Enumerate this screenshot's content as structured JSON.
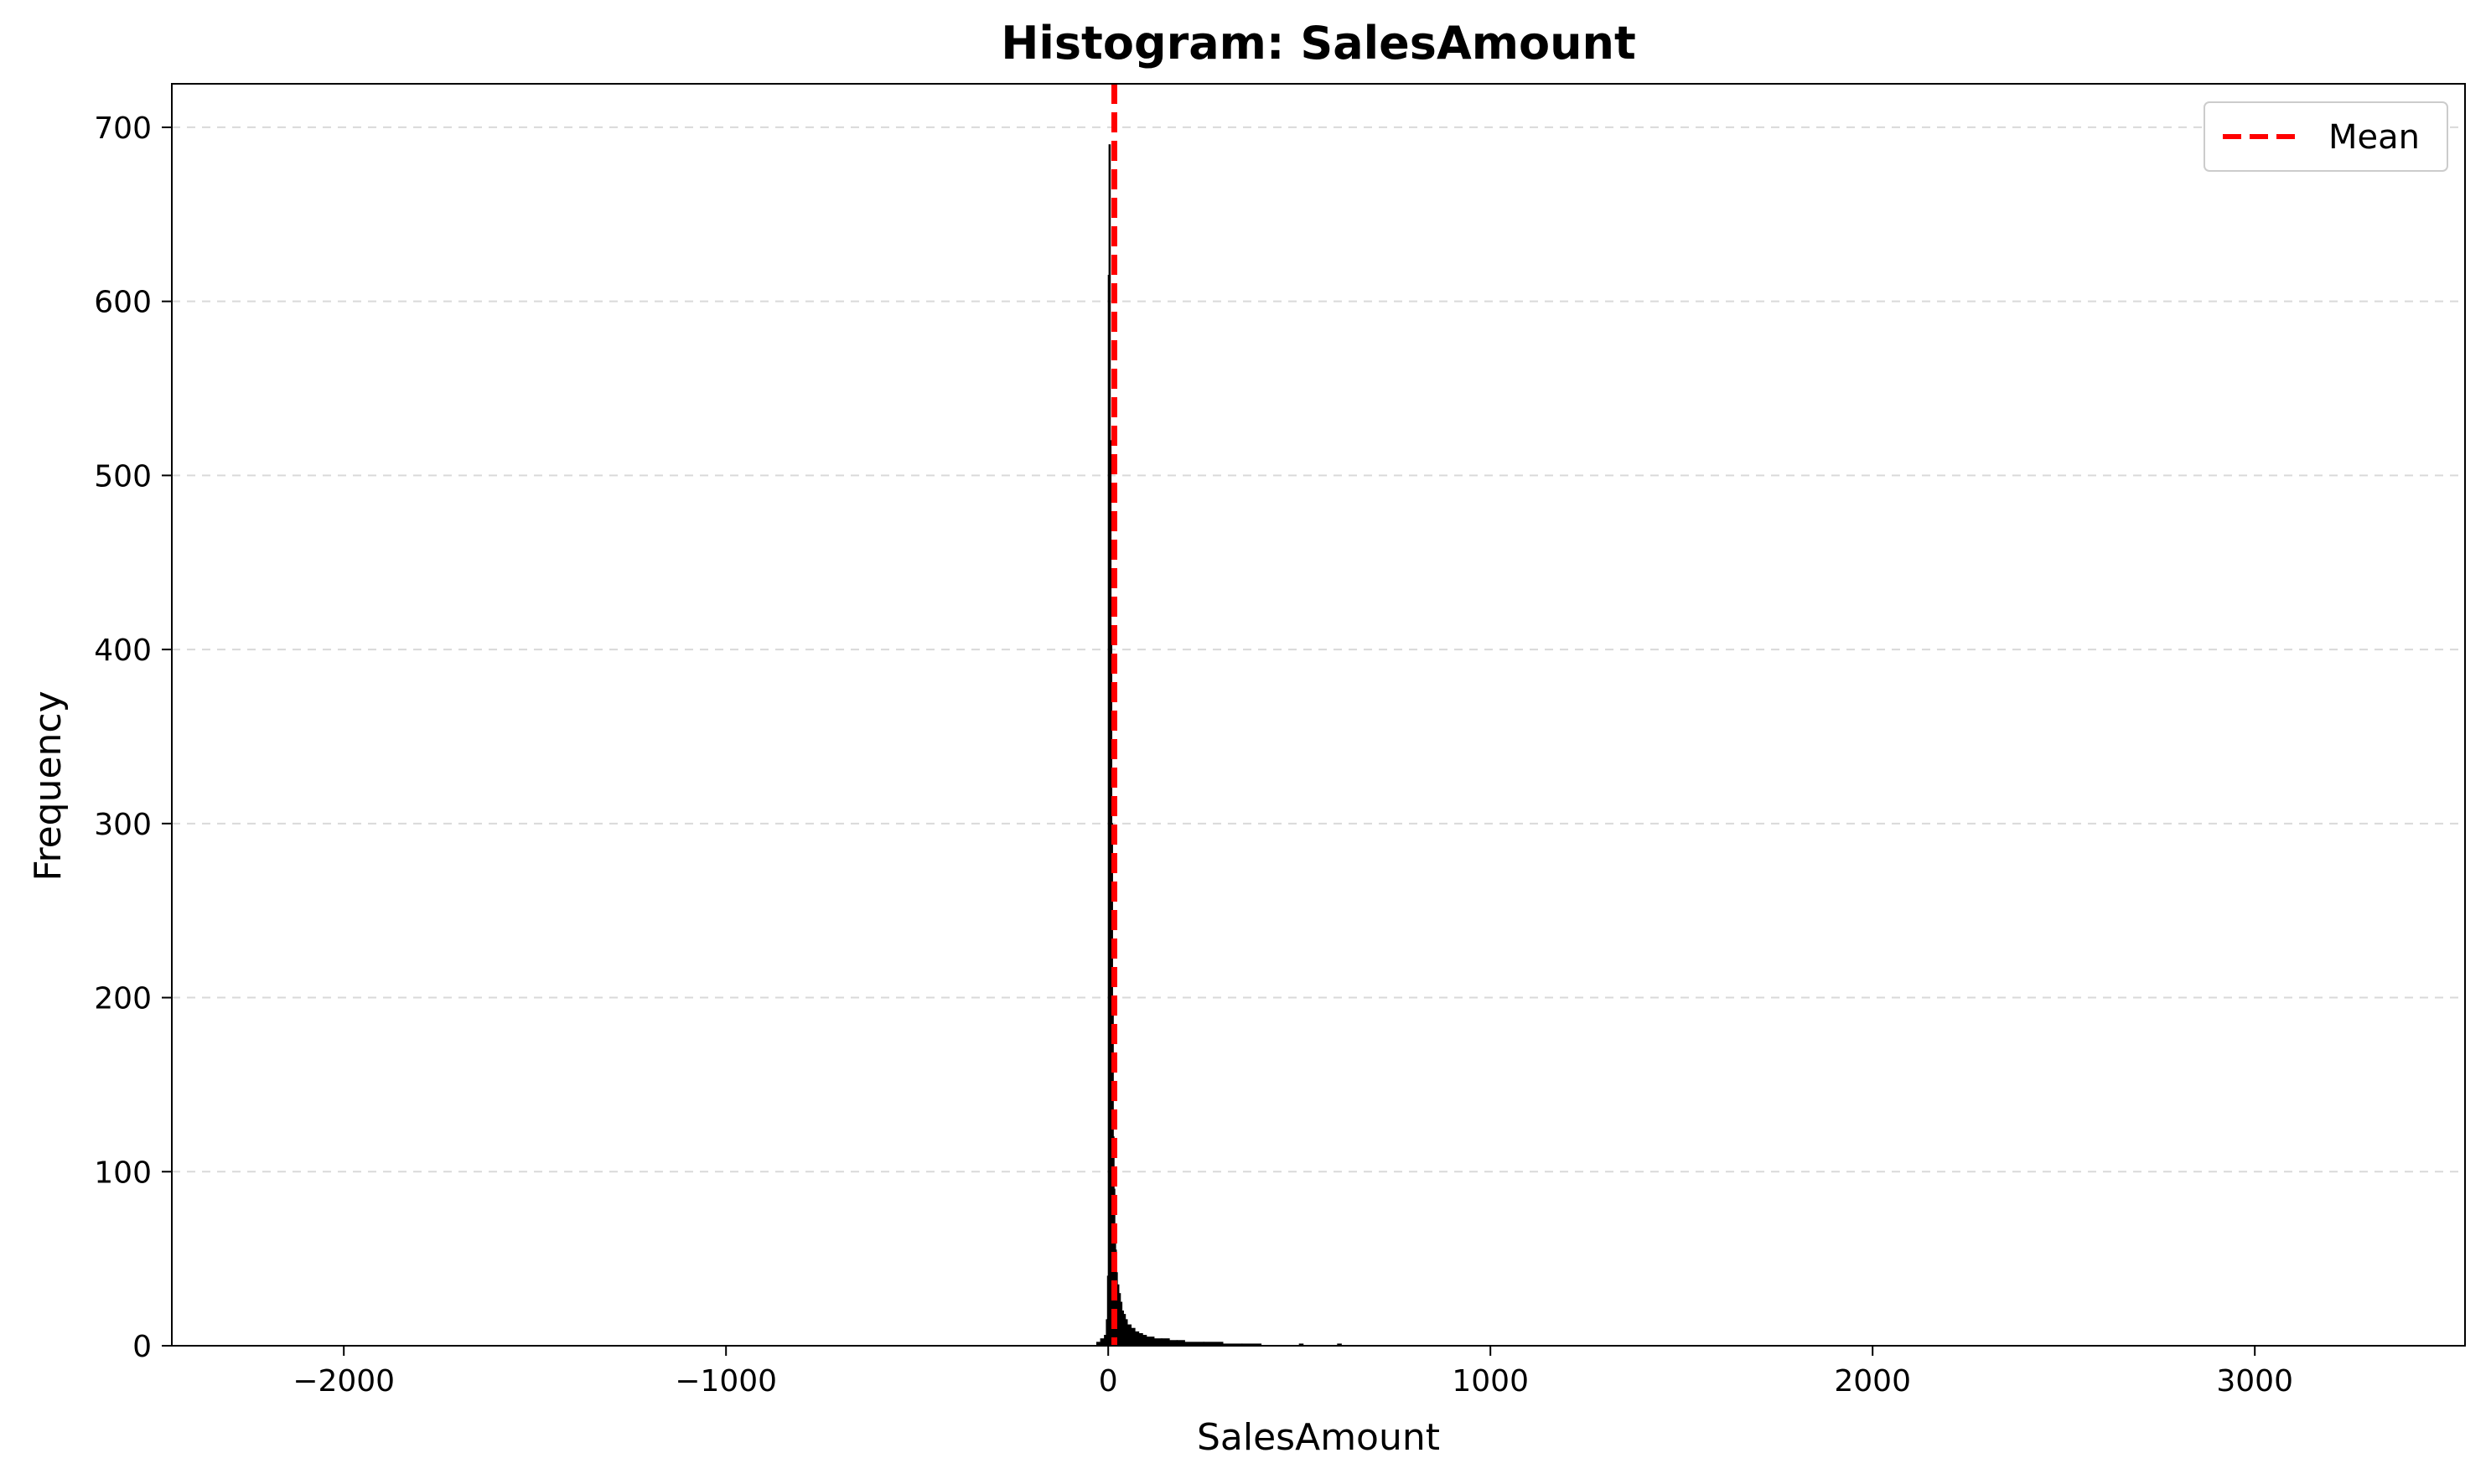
{
  "chart_data": {
    "type": "bar",
    "title": "Histogram: SalesAmount",
    "xlabel": "SalesAmount",
    "ylabel": "Frequency",
    "xlim": [
      -2450,
      3550
    ],
    "ylim": [
      0,
      725
    ],
    "x_ticks": [
      -2000,
      -1000,
      0,
      1000,
      2000,
      3000
    ],
    "x_tick_labels": [
      "−2000",
      "−1000",
      "0",
      "1000",
      "2000",
      "3000"
    ],
    "y_ticks": [
      0,
      100,
      200,
      300,
      400,
      500,
      600,
      700
    ],
    "y_tick_labels": [
      "0",
      "100",
      "200",
      "300",
      "400",
      "500",
      "600",
      "700"
    ],
    "grid": "horizontal dashed",
    "legend_position": "upper right",
    "series": [
      {
        "kind": "histogram",
        "bar_color": "#000000",
        "bins": [
          {
            "x0": -30,
            "x1": -20,
            "count": 2
          },
          {
            "x0": -20,
            "x1": -10,
            "count": 4
          },
          {
            "x0": -10,
            "x1": -5,
            "count": 6
          },
          {
            "x0": -5,
            "x1": -2,
            "count": 15
          },
          {
            "x0": -2,
            "x1": 0,
            "count": 40
          },
          {
            "x0": 0,
            "x1": 2,
            "count": 615
          },
          {
            "x0": 2,
            "x1": 4,
            "count": 690
          },
          {
            "x0": 4,
            "x1": 6,
            "count": 520
          },
          {
            "x0": 6,
            "x1": 8,
            "count": 410
          },
          {
            "x0": 8,
            "x1": 10,
            "count": 300
          },
          {
            "x0": 10,
            "x1": 12,
            "count": 200
          },
          {
            "x0": 12,
            "x1": 14,
            "count": 120
          },
          {
            "x0": 14,
            "x1": 16,
            "count": 90
          },
          {
            "x0": 16,
            "x1": 18,
            "count": 70
          },
          {
            "x0": 18,
            "x1": 20,
            "count": 55
          },
          {
            "x0": 20,
            "x1": 24,
            "count": 42
          },
          {
            "x0": 24,
            "x1": 28,
            "count": 35
          },
          {
            "x0": 28,
            "x1": 32,
            "count": 30
          },
          {
            "x0": 32,
            "x1": 36,
            "count": 25
          },
          {
            "x0": 36,
            "x1": 40,
            "count": 20
          },
          {
            "x0": 40,
            "x1": 45,
            "count": 18
          },
          {
            "x0": 45,
            "x1": 50,
            "count": 15
          },
          {
            "x0": 50,
            "x1": 60,
            "count": 12
          },
          {
            "x0": 60,
            "x1": 70,
            "count": 10
          },
          {
            "x0": 70,
            "x1": 80,
            "count": 8
          },
          {
            "x0": 80,
            "x1": 90,
            "count": 7
          },
          {
            "x0": 90,
            "x1": 100,
            "count": 6
          },
          {
            "x0": 100,
            "x1": 120,
            "count": 5
          },
          {
            "x0": 120,
            "x1": 140,
            "count": 4
          },
          {
            "x0": 140,
            "x1": 160,
            "count": 4
          },
          {
            "x0": 160,
            "x1": 180,
            "count": 3
          },
          {
            "x0": 180,
            "x1": 200,
            "count": 3
          },
          {
            "x0": 200,
            "x1": 250,
            "count": 2
          },
          {
            "x0": 250,
            "x1": 300,
            "count": 2
          },
          {
            "x0": 300,
            "x1": 350,
            "count": 1
          },
          {
            "x0": 350,
            "x1": 400,
            "count": 1
          },
          {
            "x0": 500,
            "x1": 510,
            "count": 1
          },
          {
            "x0": 600,
            "x1": 610,
            "count": 1
          }
        ]
      },
      {
        "name": "Mean",
        "kind": "vline",
        "x": 16,
        "color": "#ff0000",
        "style": "dashed"
      }
    ]
  }
}
